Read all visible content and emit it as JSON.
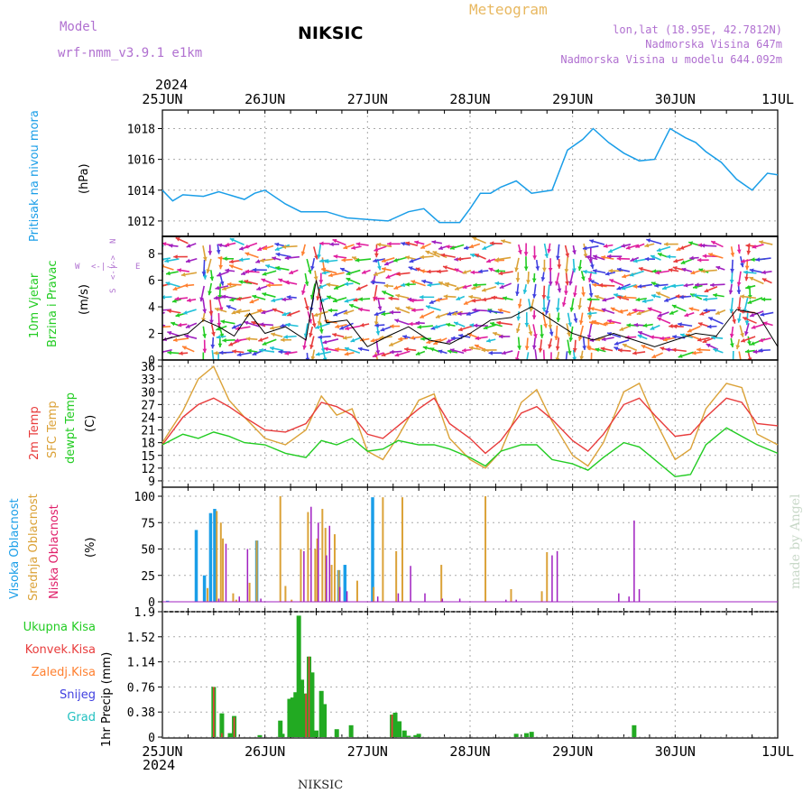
{
  "header": {
    "model_label": "Model",
    "model_name": "wrf-nmm_v3.9.1 e1km",
    "station_title": "NIKSIC",
    "meteogram_label": "Meteogram",
    "lonlat": "lon,lat (18.95E, 42.7812N)",
    "elevation": "Nadmorska Visina 647m",
    "elevation_model": "Nadmorska Visina u modelu 644.092m"
  },
  "footer": {
    "station": "NIKSIC",
    "watermark": "made by Angel"
  },
  "time_axis": {
    "year_top": "2024",
    "year_bottom": "2024",
    "ticks": [
      "25JUN",
      "26JUN",
      "27JUN",
      "28JUN",
      "29JUN",
      "30JUN",
      "1JUL"
    ]
  },
  "panels": {
    "pressure": {
      "title": "Pritisak na nivou mora",
      "unit": "(hPa)",
      "ticks": [
        "1012",
        "1014",
        "1016",
        "1018"
      ],
      "color": "#1a9ee8"
    },
    "wind": {
      "title1": "10m Vjetar",
      "title2": "Brzina i Pravac",
      "unit": "(m/s)",
      "ticks": [
        "0",
        "2",
        "4",
        "6",
        "8"
      ],
      "compass_n": "N",
      "compass_s": "S",
      "compass_w": "W",
      "compass_e": "E",
      "compass_arrow_h": "<-|->",
      "compass_arrow_v": "<-|->"
    },
    "temperature": {
      "title_2m": "2m Temp",
      "title_sfc": "SFC Temp",
      "title_dew": "dewpt Temp",
      "unit": "(C)",
      "ticks": [
        "9",
        "12",
        "15",
        "18",
        "21",
        "24",
        "27",
        "30",
        "33",
        "36"
      ]
    },
    "cloud": {
      "title_high": "Visoka Oblacnost",
      "title_mid": "Srednja Oblacnost",
      "title_low": "Niska Oblacnost",
      "unit": "(%)",
      "ticks": [
        "0",
        "25",
        "50",
        "75",
        "100"
      ]
    },
    "precip": {
      "legend": [
        "Ukupna Kisa",
        "Konvek.Kisa",
        "Zaledj.Kisa",
        "Snijeg",
        "Grad"
      ],
      "ylabel": "1hr Precip (mm)",
      "ticks": [
        "0",
        "0.38",
        "0.76",
        "1.14",
        "1.52",
        "1.9"
      ]
    }
  },
  "colors": {
    "pressure": "#1a9ee8",
    "temp2m": "#e83c3c",
    "sfc": "#dba238",
    "dew": "#22cc22",
    "high_cloud": "#1a9ee8",
    "mid_cloud": "#dba238",
    "low_cloud": "#a020c0",
    "rain": "#22aa22",
    "conv": "#e83c3c",
    "freeze": "#ff8030",
    "snow": "#4040e0",
    "hail": "#20c0c0",
    "title_purple": "#b070d0",
    "title_orange": "#e8b860",
    "grid": "#aaaaaa"
  },
  "chart_data": [
    {
      "type": "line",
      "name": "pressure",
      "xlabel": "",
      "ylabel": "(hPa)",
      "ylim": [
        1011,
        1019.2
      ],
      "x_days": [
        0,
        0.1,
        0.2,
        0.4,
        0.55,
        0.8,
        0.9,
        1.0,
        1.2,
        1.35,
        1.6,
        1.8,
        2.0,
        2.2,
        2.4,
        2.55,
        2.7,
        2.9,
        3.0,
        3.1,
        3.2,
        3.3,
        3.45,
        3.6,
        3.8,
        3.95,
        4.1,
        4.2,
        4.35,
        4.5,
        4.65,
        4.8,
        4.95,
        5.1,
        5.2,
        5.3,
        5.45,
        5.6,
        5.75,
        5.9,
        6.0
      ],
      "values": [
        1014.0,
        1013.3,
        1013.7,
        1013.6,
        1013.9,
        1013.4,
        1013.8,
        1014.0,
        1013.1,
        1012.6,
        1012.6,
        1012.2,
        1012.1,
        1012.0,
        1012.6,
        1012.8,
        1011.9,
        1011.9,
        1012.8,
        1013.8,
        1013.8,
        1014.2,
        1014.6,
        1013.8,
        1014.0,
        1016.6,
        1017.3,
        1018.0,
        1017.1,
        1016.4,
        1015.9,
        1016.0,
        1018.0,
        1017.4,
        1017.1,
        1016.5,
        1015.8,
        1014.7,
        1014.0,
        1015.1,
        1015.0
      ],
      "grid": true
    },
    {
      "type": "line",
      "name": "wind_speed",
      "ylabel": "(m/s)",
      "ylim": [
        0,
        9.3
      ],
      "x_days": [
        0,
        0.25,
        0.4,
        0.55,
        0.7,
        0.85,
        1.0,
        1.2,
        1.4,
        1.5,
        1.6,
        1.8,
        2.0,
        2.2,
        2.4,
        2.6,
        2.8,
        3.0,
        3.2,
        3.4,
        3.6,
        3.8,
        4.0,
        4.2,
        4.4,
        4.6,
        4.8,
        5.0,
        5.2,
        5.4,
        5.6,
        5.8,
        6.0
      ],
      "values": [
        1.5,
        2.0,
        3.0,
        2.5,
        1.8,
        3.5,
        2.0,
        2.5,
        1.5,
        6.0,
        2.8,
        3.0,
        1.0,
        1.8,
        2.5,
        1.5,
        1.2,
        2.0,
        3.0,
        3.2,
        4.0,
        3.0,
        2.0,
        1.5,
        2.0,
        1.5,
        1.0,
        1.5,
        2.0,
        1.8,
        3.8,
        3.5,
        1.0
      ]
    },
    {
      "type": "line",
      "name": "temperature",
      "ylabel": "(C)",
      "ylim": [
        7.5,
        37.5
      ],
      "x_days": [
        0,
        0.2,
        0.35,
        0.5,
        0.65,
        0.8,
        1.0,
        1.2,
        1.4,
        1.55,
        1.7,
        1.85,
        2.0,
        2.15,
        2.3,
        2.5,
        2.65,
        2.8,
        3.0,
        3.15,
        3.3,
        3.5,
        3.65,
        3.8,
        4.0,
        4.15,
        4.3,
        4.5,
        4.65,
        4.8,
        5.0,
        5.15,
        5.3,
        5.5,
        5.65,
        5.8,
        6.0
      ],
      "series": [
        {
          "name": "2m Temp",
          "values": [
            17.5,
            24.0,
            27.0,
            28.5,
            26.5,
            24.0,
            21.0,
            20.5,
            22.5,
            27.5,
            26.5,
            24.5,
            20.0,
            19.0,
            22.0,
            26.0,
            28.5,
            22.5,
            19.0,
            15.5,
            18.5,
            25.0,
            26.5,
            23.5,
            18.5,
            16.0,
            20.0,
            27.0,
            28.5,
            24.5,
            19.5,
            20.0,
            24.0,
            28.5,
            27.5,
            22.5,
            22.0
          ]
        },
        {
          "name": "SFC Temp",
          "values": [
            18.0,
            25.5,
            33.0,
            36.0,
            28.0,
            24.0,
            19.0,
            17.5,
            21.0,
            29.0,
            24.5,
            26.0,
            16.0,
            14.0,
            19.5,
            28.0,
            29.5,
            19.0,
            14.0,
            12.0,
            16.0,
            27.5,
            30.5,
            23.0,
            15.0,
            12.5,
            18.0,
            30.0,
            32.0,
            23.5,
            14.0,
            16.5,
            26.0,
            32.0,
            31.0,
            20.0,
            17.5
          ]
        },
        {
          "name": "dewpt Temp",
          "values": [
            17.5,
            20.0,
            19.0,
            20.5,
            19.5,
            18.0,
            17.5,
            15.5,
            14.5,
            18.5,
            17.5,
            19.0,
            16.0,
            16.5,
            18.5,
            17.5,
            17.5,
            16.5,
            14.5,
            12.5,
            16.0,
            17.5,
            17.5,
            14.0,
            13.0,
            11.5,
            14.5,
            18.0,
            17.0,
            14.0,
            10.0,
            10.5,
            17.5,
            21.5,
            19.5,
            17.5,
            15.5
          ]
        }
      ]
    },
    {
      "type": "bar",
      "name": "cloud",
      "ylabel": "(%)",
      "ylim": [
        0,
        100
      ],
      "series": [
        {
          "name": "Visoka Oblacnost",
          "x_days": [
            0.33,
            0.41,
            0.47,
            0.51,
            0.05,
            0.92,
            1.72,
            1.78,
            2.05
          ],
          "values": [
            68,
            25,
            84,
            88,
            1,
            58,
            30,
            35,
            99
          ]
        },
        {
          "name": "Srednja Oblacnost",
          "x_days": [
            0.44,
            0.53,
            0.57,
            0.59,
            0.69,
            0.72,
            0.85,
            0.92,
            1.15,
            1.2,
            1.26,
            1.35,
            1.42,
            1.49,
            1.51,
            1.56,
            1.59,
            1.65,
            1.68,
            1.72,
            1.9,
            2.06,
            2.15,
            2.28,
            2.34,
            2.72,
            3.15,
            3.4,
            3.7,
            3.75
          ],
          "values": [
            13,
            86,
            75,
            60,
            8,
            2,
            18,
            58,
            100,
            15,
            2,
            50,
            85,
            50,
            60,
            88,
            70,
            35,
            64,
            30,
            20,
            14,
            99,
            48,
            99,
            35,
            100,
            12,
            10,
            47
          ]
        },
        {
          "name": "Niska Oblacnost",
          "x_days": [
            0.55,
            0.62,
            0.75,
            0.83,
            0.96,
            1.38,
            1.45,
            1.52,
            1.6,
            1.63,
            1.73,
            1.8,
            2.1,
            2.3,
            2.42,
            2.56,
            2.73,
            2.9,
            3.35,
            3.45,
            3.8,
            3.85,
            4.45,
            4.55,
            4.6,
            4.65
          ],
          "values": [
            3,
            55,
            5,
            50,
            3,
            48,
            90,
            75,
            44,
            72,
            14,
            10,
            5,
            8,
            34,
            8,
            3,
            3,
            2,
            2,
            44,
            48,
            8,
            5,
            77,
            12
          ]
        }
      ]
    },
    {
      "type": "bar",
      "name": "precipitation",
      "ylabel": "1hr Precip (mm)",
      "ylim": [
        0,
        1.9
      ],
      "x_days": [
        0.5,
        0.58,
        0.66,
        0.7,
        0.95,
        1.15,
        1.17,
        1.24,
        1.27,
        1.3,
        1.33,
        1.36,
        1.4,
        1.43,
        1.46,
        1.5,
        1.55,
        1.58,
        1.7,
        1.84,
        2.24,
        2.27,
        2.31,
        2.36,
        2.4,
        2.47,
        2.5,
        3.45,
        3.55,
        3.6,
        4.6
      ],
      "series": [
        {
          "name": "Ukupna Kisa",
          "values": [
            0.76,
            0.36,
            0.06,
            0.32,
            0.03,
            0.25,
            0.05,
            0.58,
            0.6,
            0.68,
            1.84,
            0.87,
            0.66,
            1.22,
            0.98,
            0.1,
            0.7,
            0.5,
            0.12,
            0.18,
            0.34,
            0.37,
            0.24,
            0.1,
            0.02,
            0.03,
            0.05,
            0.05,
            0.06,
            0.08,
            0.18
          ]
        },
        {
          "name": "Konvek.Kisa",
          "values": [
            0.76,
            0.06,
            0.0,
            0.3,
            0.0,
            0.0,
            0.0,
            0.0,
            0.0,
            0.0,
            0.0,
            0.0,
            0.66,
            1.22,
            0.0,
            0.0,
            0.0,
            0.0,
            0.0,
            0.0,
            0.34,
            0.0,
            0.0,
            0.0,
            0.0,
            0.0,
            0.0,
            0.0,
            0.0,
            0.0,
            0.0
          ]
        }
      ]
    }
  ]
}
